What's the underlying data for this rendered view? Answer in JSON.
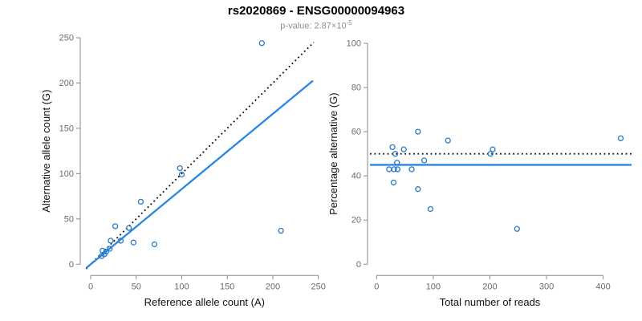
{
  "header": {
    "title": "rs2020869 - ENSG00000094963",
    "subtitle_prefix": "p-value: 2.87×10",
    "subtitle_exponent": "-5"
  },
  "colors": {
    "point": "#2b7bc5",
    "fit_line": "#2986e2",
    "dotted_line": "#111111",
    "axis": "#8a8a8a",
    "tick_label": "#6b6b6b",
    "axis_label": "#111111",
    "subtitle": "#8f8f8f"
  },
  "chart_data": [
    {
      "type": "scatter",
      "panel": "left",
      "xlabel": "Reference allele count (A)",
      "ylabel": "Alternative allele count (G)",
      "xlim": [
        0,
        250
      ],
      "ylim": [
        0,
        250
      ],
      "xticks": [
        0,
        50,
        100,
        150,
        200,
        250
      ],
      "yticks": [
        0,
        50,
        100,
        150,
        200,
        250
      ],
      "grid": false,
      "points": [
        [
          188,
          244
        ],
        [
          98,
          106
        ],
        [
          100,
          99
        ],
        [
          55,
          69
        ],
        [
          209,
          37
        ],
        [
          27,
          42
        ],
        [
          42,
          40
        ],
        [
          33,
          26
        ],
        [
          47,
          24
        ],
        [
          70,
          22
        ],
        [
          22,
          26
        ],
        [
          21,
          17
        ],
        [
          13,
          15
        ],
        [
          17,
          14
        ],
        [
          15,
          11
        ],
        [
          12,
          9
        ]
      ],
      "lines": [
        {
          "name": "identity",
          "style": "dotted",
          "from": [
            -5,
            -5
          ],
          "to": [
            245,
            245
          ]
        },
        {
          "name": "fit",
          "style": "solid",
          "from": [
            -5,
            -4.2
          ],
          "to": [
            244,
            202.5
          ]
        }
      ]
    },
    {
      "type": "scatter",
      "panel": "right",
      "xlabel": "Total number of reads",
      "ylabel": "Percentage alternative (G)",
      "xlim": [
        0,
        448
      ],
      "ylim": [
        0,
        100
      ],
      "xticks": [
        0,
        100,
        200,
        300,
        400
      ],
      "yticks": [
        0,
        20,
        40,
        60,
        80,
        100
      ],
      "grid": false,
      "points": [
        [
          28,
          53
        ],
        [
          33,
          50
        ],
        [
          48,
          52
        ],
        [
          36,
          46
        ],
        [
          22,
          43
        ],
        [
          31,
          43
        ],
        [
          37,
          43
        ],
        [
          62,
          43
        ],
        [
          73,
          60
        ],
        [
          84,
          47
        ],
        [
          30,
          37
        ],
        [
          73,
          34
        ],
        [
          95,
          25
        ],
        [
          126,
          56
        ],
        [
          201,
          50
        ],
        [
          205,
          52
        ],
        [
          248,
          16
        ],
        [
          431,
          57
        ]
      ],
      "lines": [
        {
          "name": "expected-50pct",
          "style": "dotted",
          "y": 50
        },
        {
          "name": "fit-45pct",
          "style": "solid",
          "y": 45
        }
      ]
    }
  ]
}
